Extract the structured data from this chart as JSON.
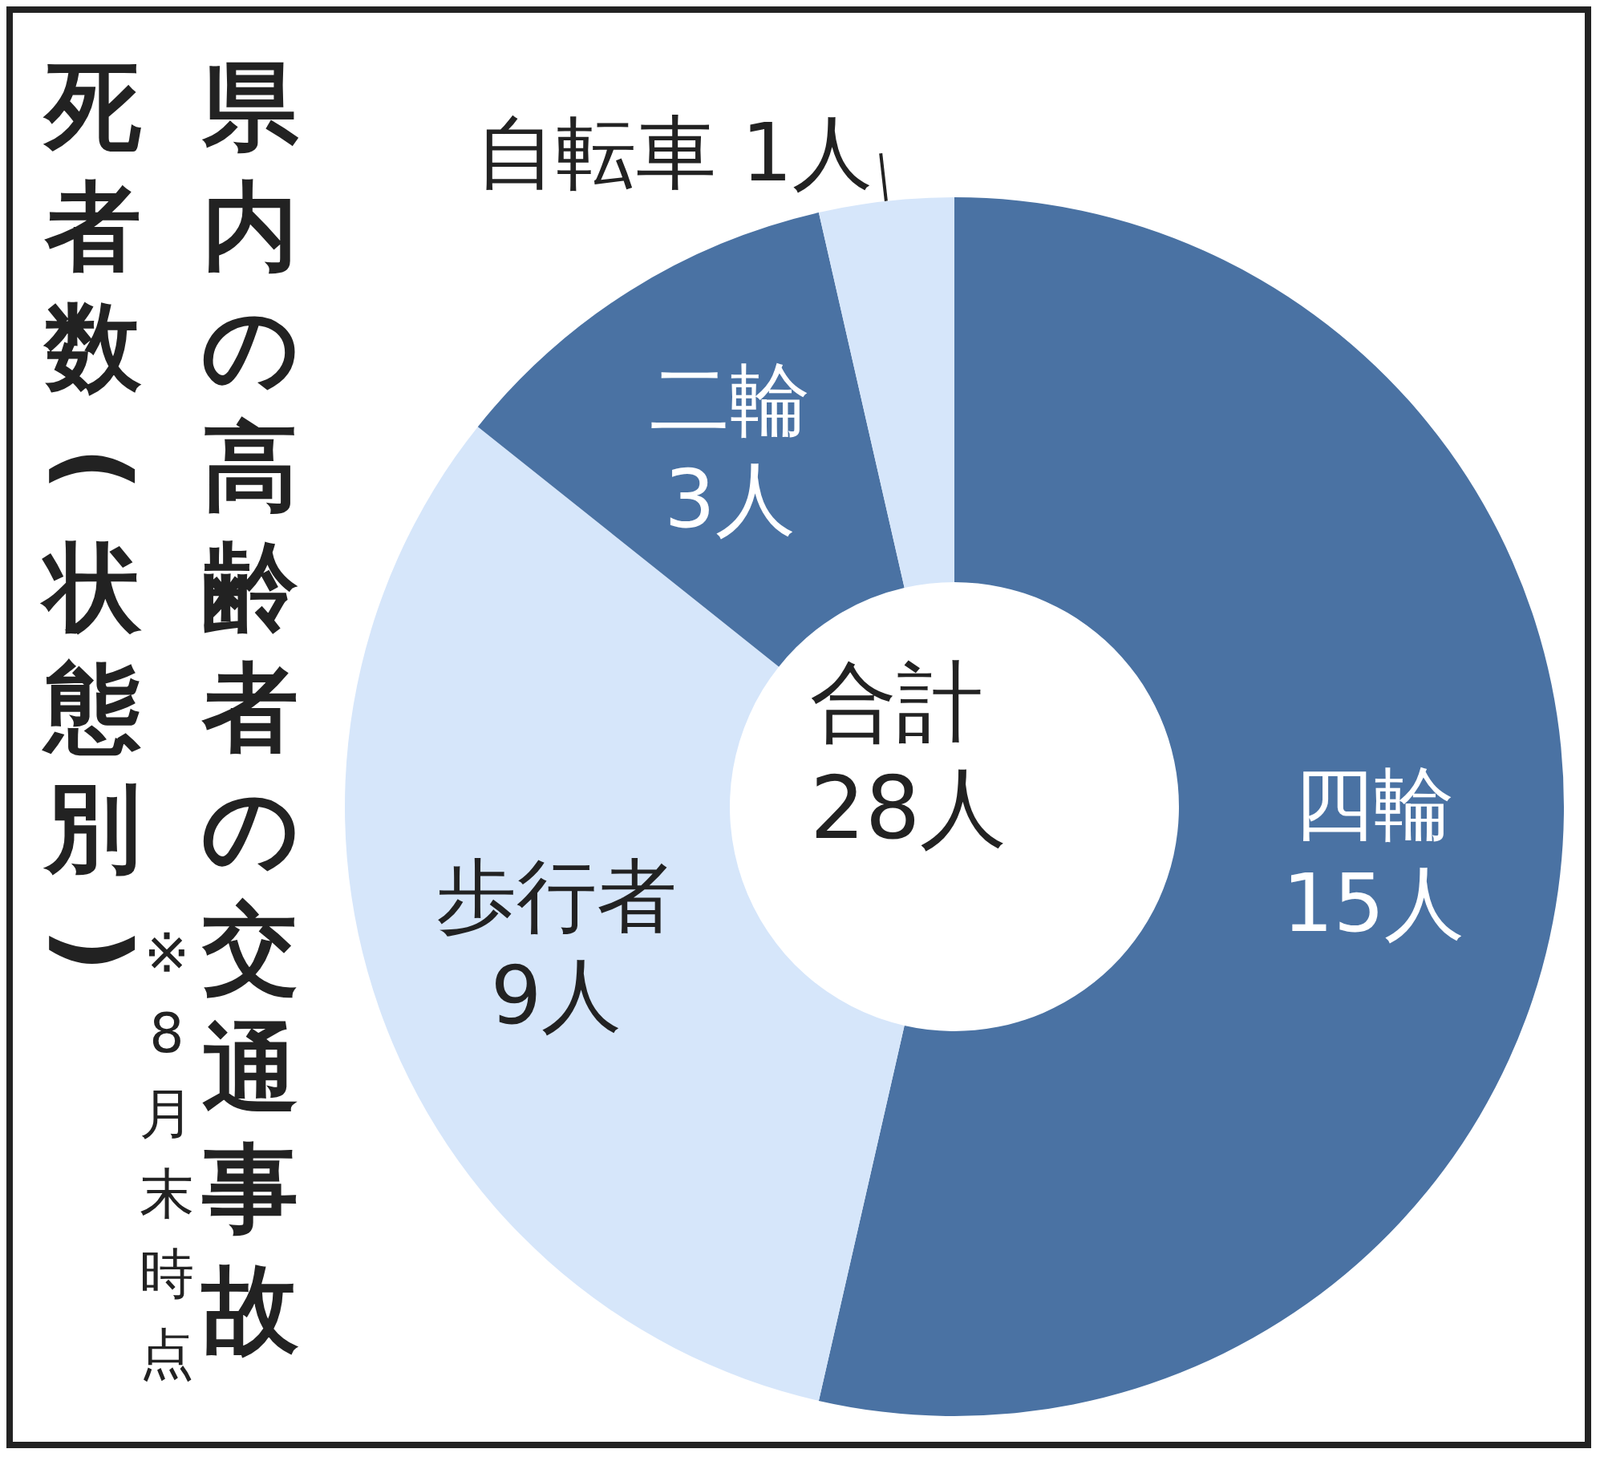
{
  "chart_data": {
    "type": "donut",
    "title": "県内の高齢者の交通事故",
    "subtitle": "死者数(状態別)",
    "categories": [
      "四輪",
      "歩行者",
      "二輪",
      "自転車"
    ],
    "values": [
      15,
      9,
      3,
      1
    ],
    "value_labels": [
      "15人",
      "9人",
      "3人",
      "1人"
    ],
    "colors": [
      "#4a72a3",
      "#d6e6fa",
      "#4a72a3",
      "#d6e6fa"
    ],
    "annotations": [
      "合計 28人",
      "※8月末時点"
    ],
    "legend": false
  }
}
